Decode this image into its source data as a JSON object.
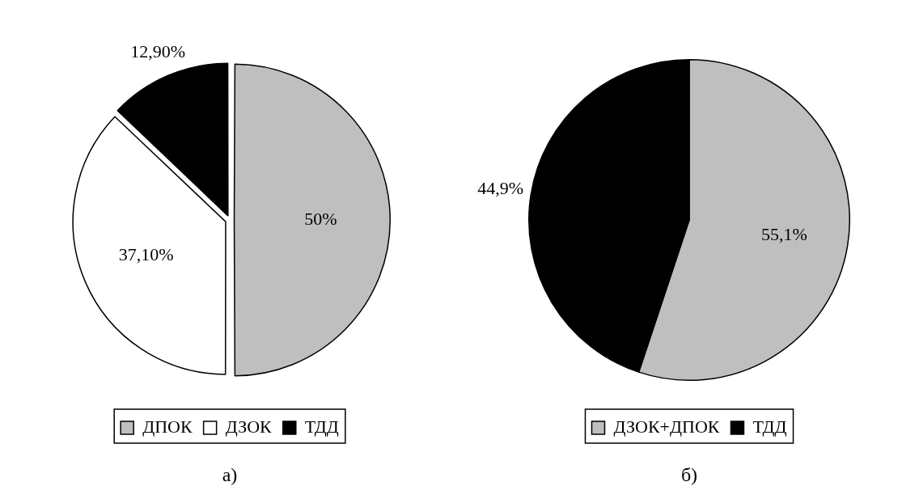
{
  "chart_data": [
    {
      "type": "pie",
      "categories": [
        "ДПОК",
        "ДЗОК",
        "ТДД"
      ],
      "values": [
        50,
        37.1,
        12.9
      ],
      "colors": [
        "#bfbfbf",
        "#ffffff",
        "#000000"
      ],
      "value_labels": [
        "50%",
        "37,10%",
        "12,90%"
      ],
      "legend": "bottom",
      "annotations": [
        "а)"
      ]
    },
    {
      "type": "pie",
      "categories": [
        "ДЗОК+ДПОК",
        "ТДД"
      ],
      "values": [
        55.1,
        44.9
      ],
      "colors": [
        "#bfbfbf",
        "#000000"
      ],
      "value_labels": [
        "55,1%",
        "44,9%"
      ],
      "legend": "bottom",
      "annotations": [
        "б)"
      ]
    }
  ]
}
